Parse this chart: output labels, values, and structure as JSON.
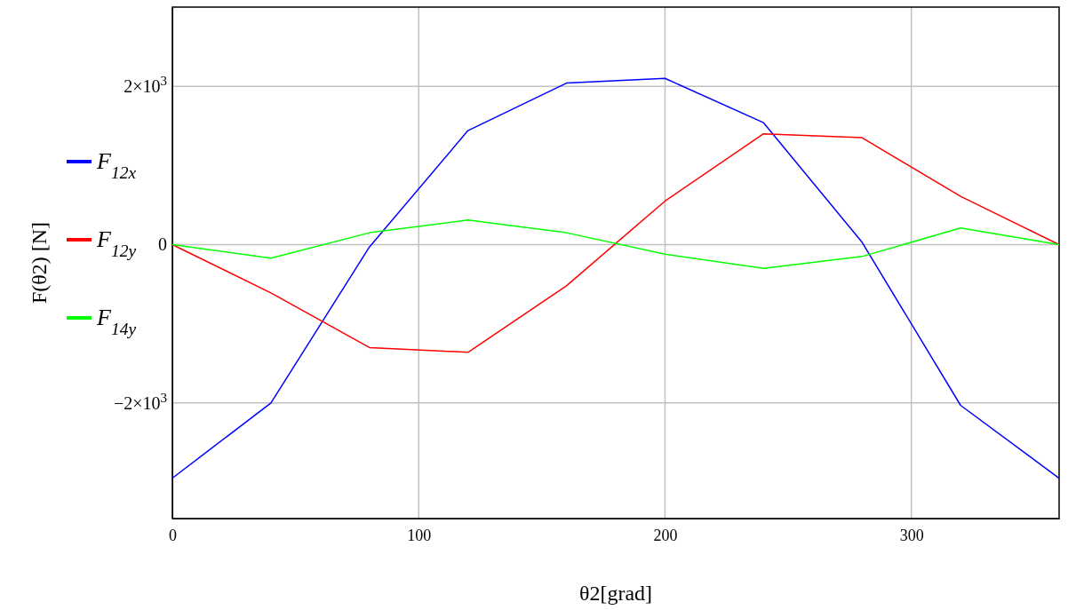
{
  "chart_data": {
    "type": "line",
    "xlabel": "θ2[grad]",
    "ylabel": "F(θ2) [N]",
    "x": [
      0,
      40,
      80,
      120,
      160,
      200,
      240,
      280,
      320,
      360
    ],
    "series": [
      {
        "name": "F$_{12x}$",
        "color": "#0000ff",
        "values": [
          -2950,
          -2000,
          -30,
          1440,
          2040,
          2100,
          1540,
          30,
          -2030,
          -2950
        ]
      },
      {
        "name": "F$_{12y}$",
        "color": "#ff0000",
        "values": [
          0,
          -610,
          -1300,
          -1360,
          -520,
          550,
          1400,
          1350,
          610,
          0
        ]
      },
      {
        "name": "F$_{14y}$",
        "color": "#00ff00",
        "values": [
          0,
          -170,
          150,
          310,
          150,
          -120,
          -300,
          -150,
          210,
          0
        ]
      }
    ],
    "xlim": [
      0,
      360
    ],
    "xticks": [
      0,
      100,
      200,
      300
    ],
    "ylim": [
      -3460,
      3000
    ],
    "yticks": [
      {
        "value": -2000,
        "label": "−2×10$^{3}$"
      },
      0,
      {
        "value": 2000,
        "label": "2×10$^{3}$"
      }
    ],
    "grid": true,
    "legend": "left",
    "marker": "none",
    "line_style": "solid"
  }
}
